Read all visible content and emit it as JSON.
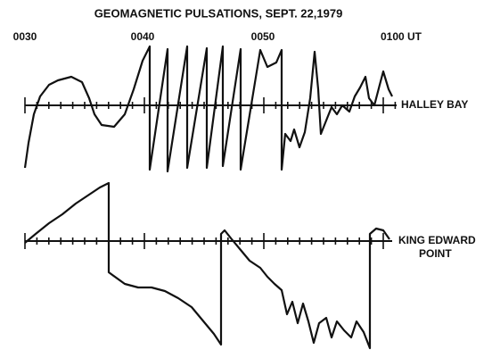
{
  "chart_data": {
    "type": "line",
    "title": "GEOMAGNETIC PULSATIONS, SEPT. 22,1979",
    "time_labels": [
      "0030",
      "0040",
      "0050",
      "0100 UT"
    ],
    "stations": [
      {
        "name": "HALLEY BAY"
      },
      {
        "name": "KING EDWARD",
        "name_line2": "POINT"
      }
    ]
  }
}
